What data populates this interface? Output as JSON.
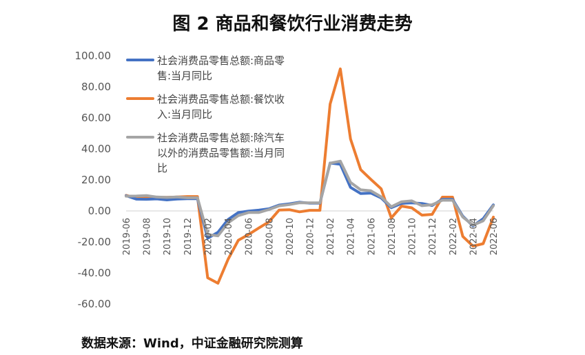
{
  "title": "图 2 商品和餐饮行业消费走势",
  "source": "数据来源：Wind，中证金融研究院测算",
  "chart_data": {
    "type": "line",
    "ylim": [
      -60,
      100
    ],
    "yticks": [
      "100.00",
      "80.00",
      "60.00",
      "40.00",
      "20.00",
      "0.00",
      "-20.00",
      "-40.00",
      "-60.00"
    ],
    "x_tick_labels": [
      "2019-06",
      "2019-08",
      "2019-10",
      "2019-12",
      "2020-02",
      "2020-04",
      "2020-06",
      "2020-08",
      "2020-10",
      "2020-12",
      "2021-02",
      "2021-04",
      "2021-06",
      "2021-08",
      "2021-10",
      "2021-12",
      "2022-02",
      "2022-04",
      "2022-06"
    ],
    "x": [
      "2019-06",
      "2019-07",
      "2019-08",
      "2019-09",
      "2019-10",
      "2019-11",
      "2019-12",
      "2020-01",
      "2020-02",
      "2020-03",
      "2020-04",
      "2020-05",
      "2020-06",
      "2020-07",
      "2020-08",
      "2020-09",
      "2020-10",
      "2020-11",
      "2020-12",
      "2021-01",
      "2021-02",
      "2021-03",
      "2021-04",
      "2021-05",
      "2021-06",
      "2021-07",
      "2021-08",
      "2021-09",
      "2021-10",
      "2021-11",
      "2021-12",
      "2022-01",
      "2022-02",
      "2022-03",
      "2022-04",
      "2022-05",
      "2022-06"
    ],
    "legend_position": "top-left",
    "series": [
      {
        "name": "社会消费品零售总额:商品零售:当月同比",
        "legend_lines": [
          "社会消费品零售总额:商品零",
          "售:当月同比"
        ],
        "color": "#4472C4",
        "values": [
          9.8,
          7.6,
          7.5,
          7.8,
          7.1,
          7.7,
          7.9,
          7.9,
          -17.6,
          -13.8,
          -5.5,
          -1.0,
          -0.1,
          0.5,
          1.4,
          3.8,
          4.6,
          5.6,
          5.0,
          5.0,
          30.9,
          30.1,
          15.2,
          11.2,
          11.5,
          8.4,
          2.1,
          4.9,
          5.2,
          4.8,
          3.5,
          7.5,
          7.5,
          -3.4,
          -9.7,
          -5.0,
          3.9
        ]
      },
      {
        "name": "社会消费品零售总额:餐饮收入:当月同比",
        "legend_lines": [
          "社会消费品零售总额:餐饮收",
          "入:当月同比"
        ],
        "color": "#ED7D31",
        "values": [
          10.0,
          8.5,
          8.5,
          8.8,
          8.8,
          9.0,
          9.3,
          9.3,
          -43.1,
          -46.6,
          -31.1,
          -18.9,
          -15.2,
          -11.0,
          -7.0,
          0.6,
          0.8,
          -0.6,
          0.4,
          0.4,
          68.9,
          91.6,
          46.4,
          26.6,
          20.3,
          14.3,
          -4.5,
          3.1,
          2.0,
          -2.7,
          -2.2,
          8.9,
          8.9,
          -16.4,
          -22.7,
          -21.1,
          -4.0
        ]
      },
      {
        "name": "社会消费品零售总额:除汽车以外的消费品零售额:当月同比",
        "legend_lines": [
          "社会消费品零售总额:除汽车",
          "以外的消费品零售额:当月同",
          "比"
        ],
        "color": "#A5A5A5",
        "values": [
          9.5,
          9.6,
          9.9,
          9.0,
          8.7,
          9.0,
          8.5,
          8.5,
          -15.2,
          -16.1,
          -7.7,
          -3.0,
          -1.0,
          -1.0,
          0.9,
          3.3,
          4.1,
          5.3,
          5.2,
          5.2,
          30.8,
          32.1,
          18.4,
          13.6,
          13.0,
          9.1,
          2.7,
          5.9,
          6.5,
          3.4,
          4.0,
          6.9,
          6.9,
          -3.9,
          -9.2,
          -6.4,
          3.4
        ]
      }
    ]
  }
}
